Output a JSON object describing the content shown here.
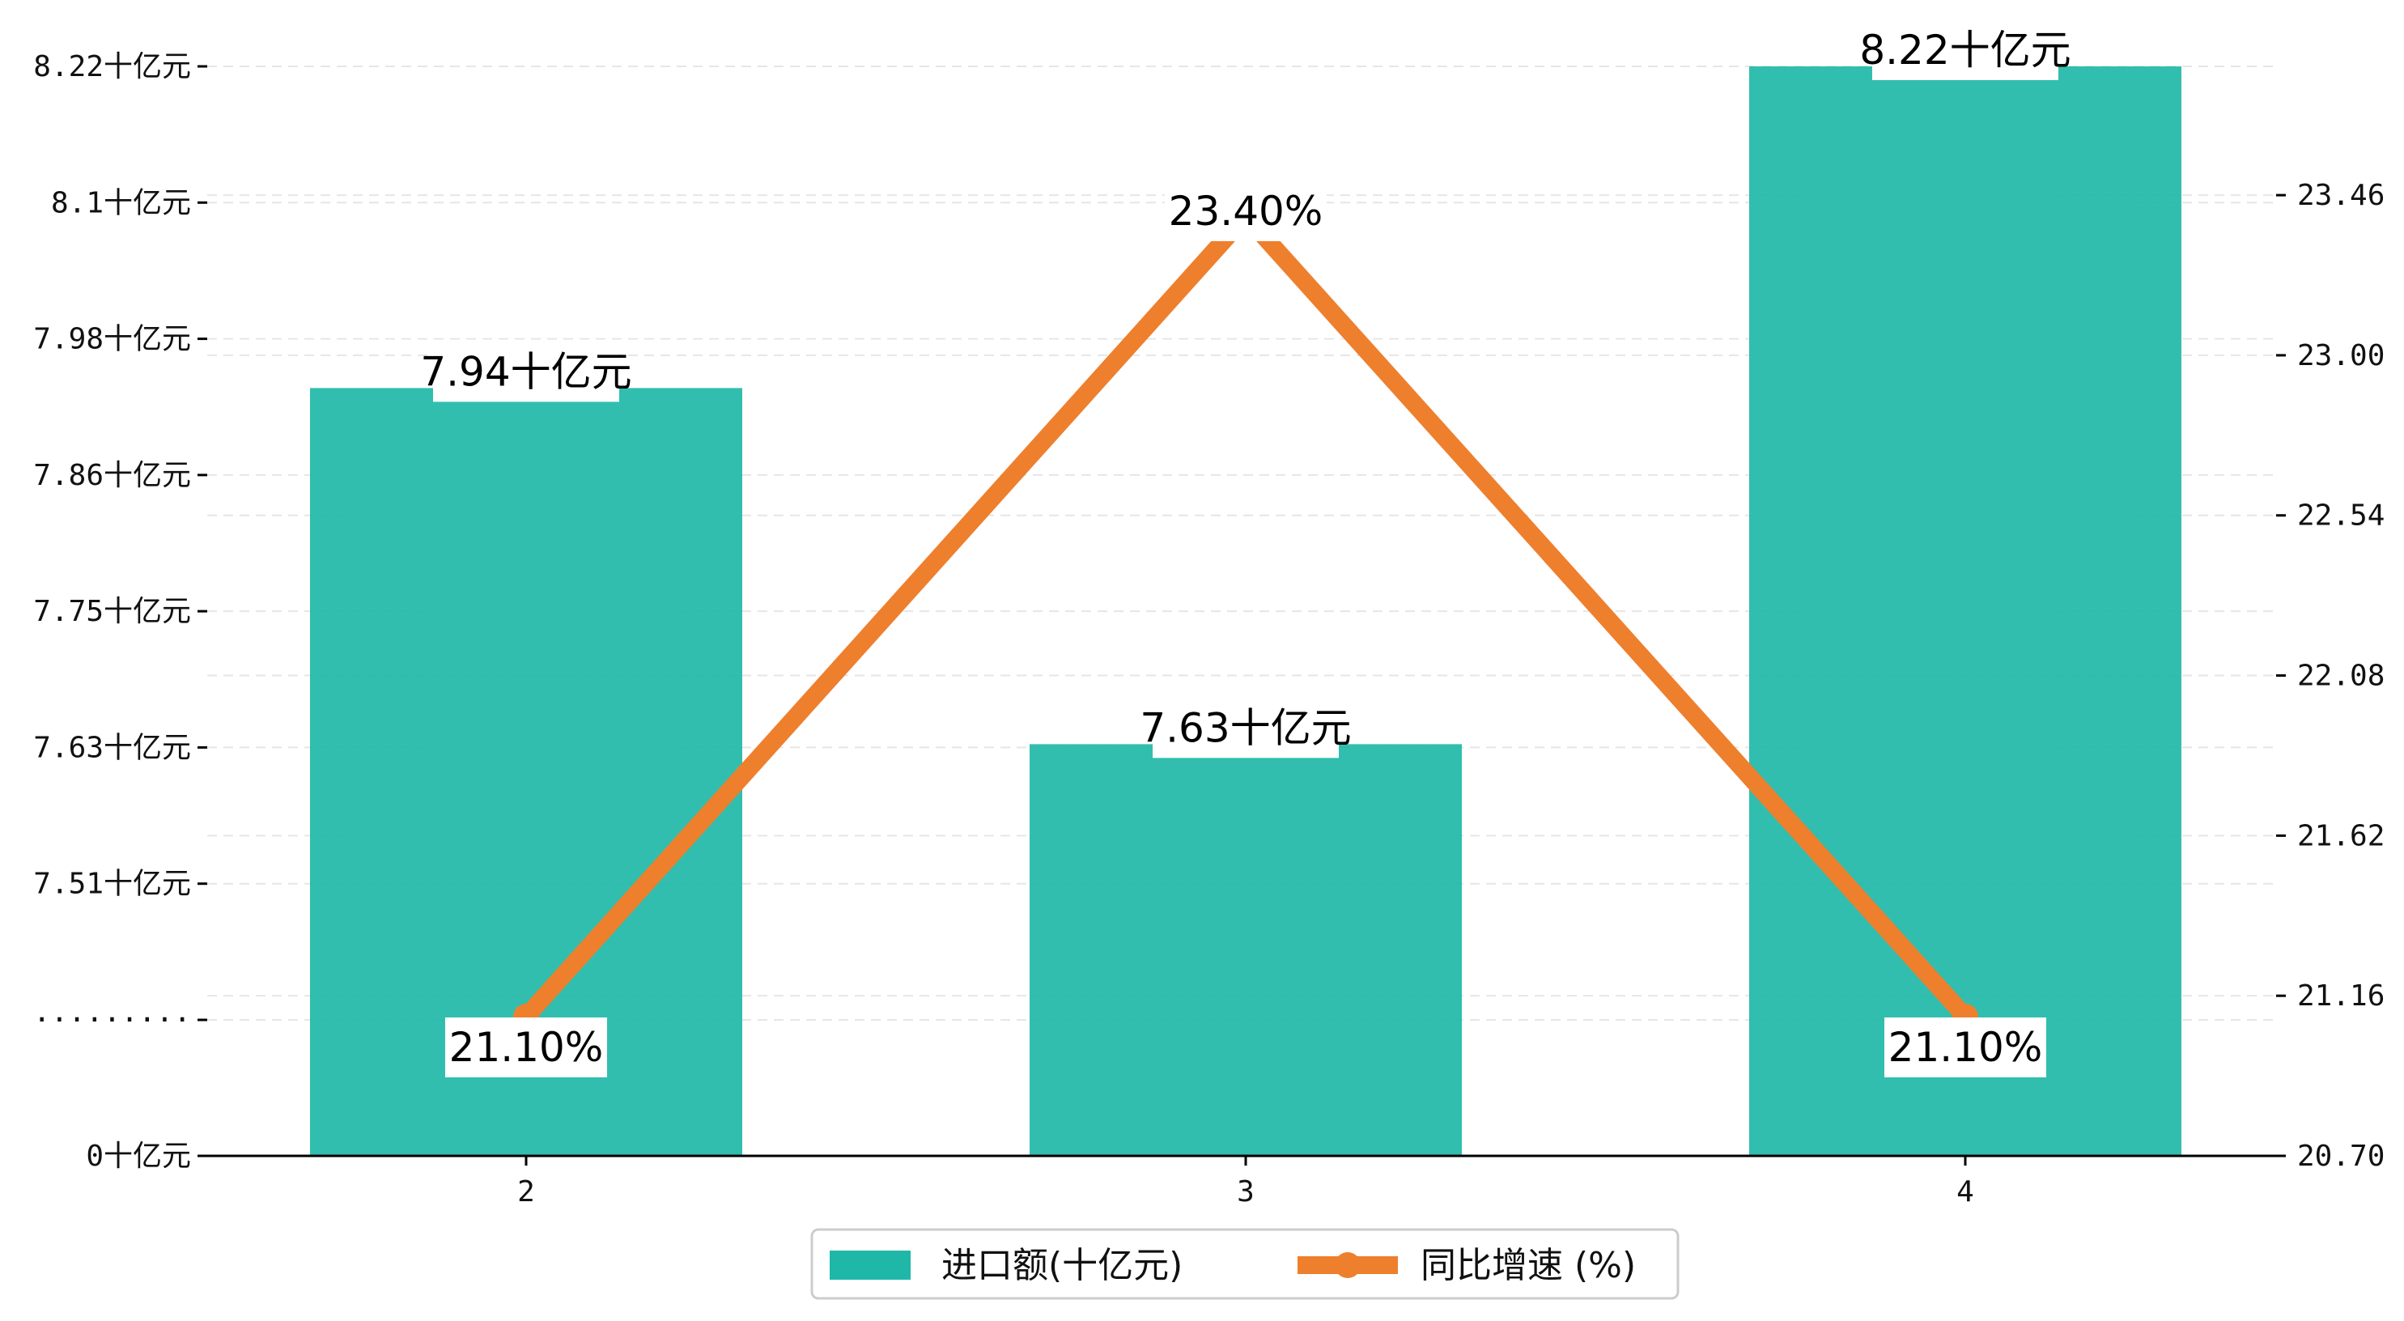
{
  "chart_data": {
    "type": "bar",
    "categories": [
      "2",
      "3",
      "4"
    ],
    "series": [
      {
        "name": "进口额(十亿元)",
        "type": "bar",
        "axis": "left",
        "values": [
          7.94,
          7.63,
          8.22
        ],
        "color": "#1fb8a8"
      },
      {
        "name": "同比增速 (%)",
        "type": "line",
        "axis": "right",
        "values": [
          21.1,
          23.4,
          21.1
        ],
        "color": "#ee7f2d"
      }
    ],
    "bar_labels": [
      "7.94十亿元",
      "7.63十亿元",
      "8.22十亿元"
    ],
    "line_labels": [
      "21.10%",
      "23.40%",
      "21.10%"
    ],
    "left_axis": {
      "tick_labels": [
        "0十亿元",
        "·········",
        "7.51十亿元",
        "7.63十亿元",
        "7.75十亿元",
        "7.86十亿元",
        "7.98十亿元",
        "8.1十亿元",
        "8.22十亿元"
      ],
      "break": true,
      "break_range": [
        7.39,
        8.22
      ]
    },
    "right_axis": {
      "tick_values": [
        20.7,
        21.16,
        21.62,
        22.08,
        22.54,
        23.0,
        23.46
      ],
      "tick_labels": [
        "20.70",
        "21.16",
        "21.62",
        "22.08",
        "22.54",
        "23.00",
        "23.46"
      ],
      "ylim": [
        20.7,
        23.83
      ]
    },
    "grid": true,
    "legend_position": "bottom-center"
  }
}
